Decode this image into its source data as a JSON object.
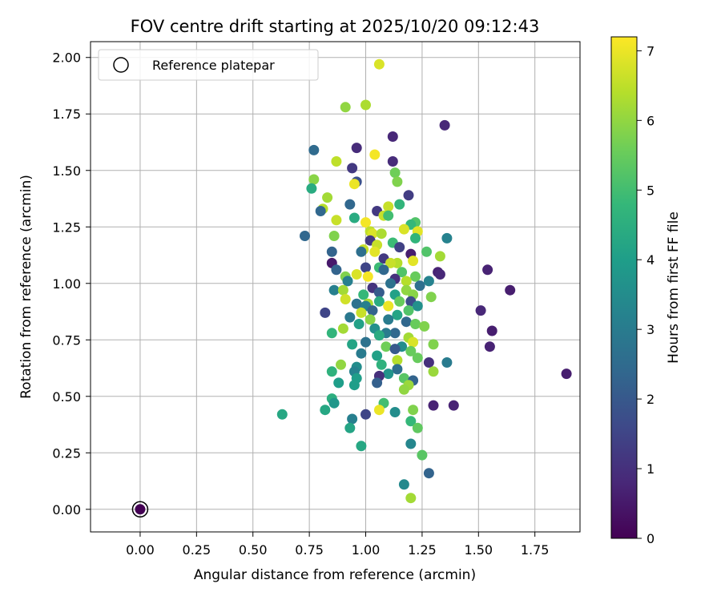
{
  "chart_data": {
    "type": "scatter",
    "title": "FOV centre drift starting at 2025/10/20 09:12:43",
    "xlabel": "Angular distance from reference (arcmin)",
    "ylabel": "Rotation from reference (arcmin)",
    "xlim": [
      -0.22,
      1.95
    ],
    "ylim": [
      -0.1,
      2.07
    ],
    "xticks": [
      "0.00",
      "0.25",
      "0.50",
      "0.75",
      "1.00",
      "1.25",
      "1.50",
      "1.75"
    ],
    "xtick_values": [
      0,
      0.25,
      0.5,
      0.75,
      1.0,
      1.25,
      1.5,
      1.75
    ],
    "yticks": [
      "0.00",
      "0.25",
      "0.50",
      "0.75",
      "1.00",
      "1.25",
      "1.50",
      "1.75",
      "2.00"
    ],
    "ytick_values": [
      0,
      0.25,
      0.5,
      0.75,
      1.0,
      1.25,
      1.5,
      1.75,
      2.0
    ],
    "grid": true,
    "legend": {
      "placement": "top-left",
      "entries": [
        "Reference platepar"
      ]
    },
    "reference_point": {
      "x": 0.0,
      "y": 0.0
    },
    "colorbar": {
      "label": "Hours from first FF file",
      "range": [
        0,
        7.2
      ],
      "ticks": [
        "0",
        "1",
        "2",
        "3",
        "4",
        "5",
        "6",
        "7"
      ],
      "tick_values": [
        0,
        1,
        2,
        3,
        4,
        5,
        6,
        7
      ],
      "colormap": [
        "#440154",
        "#482878",
        "#3e4989",
        "#31688e",
        "#26828e",
        "#1f9e89",
        "#35b779",
        "#6ece58",
        "#b5de2b",
        "#fde725"
      ]
    },
    "points": [
      [
        1.06,
        1.97,
        6.8
      ],
      [
        1.0,
        1.79,
        6.3
      ],
      [
        0.91,
        1.78,
        6.0
      ],
      [
        1.12,
        1.65,
        0.8
      ],
      [
        1.35,
        1.7,
        0.8
      ],
      [
        0.77,
        1.59,
        2.5
      ],
      [
        0.96,
        1.6,
        0.9
      ],
      [
        1.04,
        1.57,
        7.1
      ],
      [
        0.87,
        1.54,
        6.5
      ],
      [
        1.12,
        1.54,
        0.9
      ],
      [
        0.94,
        1.51,
        1.2
      ],
      [
        1.13,
        1.49,
        5.6
      ],
      [
        0.77,
        1.46,
        5.9
      ],
      [
        1.14,
        1.45,
        5.8
      ],
      [
        0.96,
        1.45,
        1.8
      ],
      [
        0.95,
        1.44,
        7.0
      ],
      [
        0.76,
        1.42,
        4.4
      ],
      [
        1.19,
        1.39,
        1.3
      ],
      [
        0.83,
        1.38,
        6.2
      ],
      [
        1.15,
        1.35,
        4.7
      ],
      [
        0.93,
        1.35,
        2.4
      ],
      [
        0.81,
        1.33,
        6.4
      ],
      [
        1.1,
        1.34,
        6.6
      ],
      [
        1.05,
        1.32,
        1.2
      ],
      [
        0.8,
        1.32,
        2.4
      ],
      [
        1.08,
        1.3,
        6.6
      ],
      [
        1.1,
        1.3,
        5.0
      ],
      [
        0.95,
        1.29,
        4.4
      ],
      [
        0.87,
        1.28,
        6.6
      ],
      [
        1.22,
        1.27,
        5.2
      ],
      [
        1.0,
        1.27,
        7.1
      ],
      [
        1.2,
        1.26,
        4.8
      ],
      [
        1.02,
        1.23,
        6.5
      ],
      [
        1.03,
        1.22,
        6.8
      ],
      [
        1.17,
        1.24,
        6.8
      ],
      [
        1.23,
        1.23,
        6.9
      ],
      [
        0.73,
        1.21,
        2.4
      ],
      [
        0.86,
        1.21,
        5.8
      ],
      [
        1.07,
        1.22,
        6.3
      ],
      [
        1.22,
        1.2,
        4.7
      ],
      [
        1.36,
        1.2,
        3.2
      ],
      [
        1.02,
        1.19,
        1.2
      ],
      [
        1.12,
        1.18,
        4.9
      ],
      [
        1.05,
        1.17,
        6.6
      ],
      [
        1.15,
        1.16,
        1.4
      ],
      [
        0.99,
        1.15,
        6.6
      ],
      [
        0.98,
        1.14,
        2.6
      ],
      [
        1.04,
        1.14,
        6.9
      ],
      [
        0.85,
        1.14,
        2.3
      ],
      [
        1.27,
        1.14,
        5.2
      ],
      [
        1.2,
        1.13,
        0.6
      ],
      [
        1.33,
        1.12,
        6.2
      ],
      [
        1.08,
        1.11,
        1.2
      ],
      [
        1.21,
        1.1,
        6.9
      ],
      [
        1.14,
        1.09,
        6.4
      ],
      [
        0.85,
        1.09,
        0.5
      ],
      [
        1.11,
        1.09,
        6.6
      ],
      [
        1.0,
        1.07,
        1.5
      ],
      [
        1.06,
        1.07,
        4.9
      ],
      [
        1.08,
        1.06,
        2.4
      ],
      [
        0.87,
        1.06,
        2.3
      ],
      [
        1.32,
        1.05,
        0.7
      ],
      [
        1.16,
        1.05,
        5.2
      ],
      [
        0.96,
        1.04,
        6.8
      ],
      [
        1.01,
        1.03,
        7.1
      ],
      [
        0.91,
        1.03,
        5.8
      ],
      [
        1.22,
        1.03,
        5.5
      ],
      [
        1.33,
        1.04,
        0.8
      ],
      [
        1.54,
        1.06,
        0.7
      ],
      [
        1.13,
        1.02,
        1.0
      ],
      [
        0.92,
        1.01,
        3.1
      ],
      [
        1.18,
        1.01,
        6.4
      ],
      [
        1.11,
        1.0,
        2.7
      ],
      [
        1.24,
        0.99,
        2.6
      ],
      [
        1.28,
        1.01,
        3.2
      ],
      [
        1.03,
        0.98,
        1.1
      ],
      [
        0.86,
        0.97,
        3.1
      ],
      [
        0.9,
        0.97,
        6.2
      ],
      [
        1.18,
        0.97,
        6.0
      ],
      [
        1.64,
        0.97,
        0.6
      ],
      [
        1.06,
        0.96,
        2.1
      ],
      [
        1.13,
        0.95,
        4.1
      ],
      [
        1.21,
        0.95,
        5.9
      ],
      [
        0.99,
        0.95,
        4.8
      ],
      [
        1.29,
        0.94,
        5.8
      ],
      [
        0.91,
        0.93,
        6.7
      ],
      [
        1.2,
        0.92,
        1.7
      ],
      [
        1.06,
        0.92,
        4.4
      ],
      [
        0.96,
        0.91,
        2.7
      ],
      [
        1.01,
        0.91,
        6.3
      ],
      [
        1.15,
        0.92,
        5.5
      ],
      [
        1.23,
        0.9,
        3.6
      ],
      [
        1.0,
        0.9,
        3.1
      ],
      [
        1.03,
        0.88,
        2.3
      ],
      [
        1.1,
        0.9,
        7.0
      ],
      [
        1.19,
        0.88,
        5.2
      ],
      [
        0.98,
        0.87,
        6.6
      ],
      [
        1.51,
        0.88,
        0.8
      ],
      [
        0.82,
        0.87,
        1.5
      ],
      [
        1.14,
        0.86,
        4.2
      ],
      [
        0.93,
        0.85,
        2.9
      ],
      [
        1.1,
        0.84,
        3.0
      ],
      [
        1.02,
        0.84,
        5.9
      ],
      [
        1.18,
        0.83,
        2.4
      ],
      [
        0.97,
        0.82,
        4.1
      ],
      [
        1.22,
        0.82,
        5.5
      ],
      [
        1.26,
        0.81,
        5.8
      ],
      [
        0.9,
        0.8,
        6.2
      ],
      [
        1.04,
        0.8,
        3.6
      ],
      [
        1.56,
        0.79,
        0.6
      ],
      [
        1.13,
        0.78,
        2.4
      ],
      [
        1.09,
        0.78,
        3.0
      ],
      [
        0.85,
        0.78,
        4.7
      ],
      [
        1.06,
        0.77,
        4.4
      ],
      [
        1.19,
        0.76,
        6.2
      ],
      [
        1.21,
        0.74,
        6.8
      ],
      [
        1.0,
        0.74,
        2.7
      ],
      [
        0.94,
        0.73,
        4.2
      ],
      [
        1.09,
        0.72,
        5.6
      ],
      [
        1.16,
        0.72,
        3.5
      ],
      [
        1.3,
        0.73,
        5.8
      ],
      [
        1.55,
        0.72,
        0.7
      ],
      [
        1.13,
        0.71,
        2.0
      ],
      [
        1.2,
        0.7,
        5.5
      ],
      [
        0.98,
        0.69,
        3.0
      ],
      [
        1.05,
        0.68,
        4.1
      ],
      [
        1.23,
        0.67,
        5.5
      ],
      [
        1.14,
        0.66,
        6.4
      ],
      [
        0.89,
        0.64,
        6.0
      ],
      [
        0.96,
        0.63,
        3.5
      ],
      [
        1.07,
        0.64,
        4.6
      ],
      [
        1.28,
        0.65,
        1.0
      ],
      [
        1.36,
        0.65,
        3.0
      ],
      [
        1.14,
        0.62,
        2.6
      ],
      [
        0.85,
        0.61,
        4.6
      ],
      [
        0.95,
        0.61,
        3.2
      ],
      [
        1.3,
        0.61,
        6.1
      ],
      [
        1.1,
        0.6,
        3.7
      ],
      [
        1.06,
        0.59,
        1.0
      ],
      [
        0.96,
        0.58,
        4.0
      ],
      [
        1.17,
        0.58,
        5.3
      ],
      [
        1.21,
        0.57,
        2.3
      ],
      [
        0.88,
        0.56,
        4.0
      ],
      [
        1.05,
        0.56,
        2.2
      ],
      [
        1.19,
        0.55,
        6.1
      ],
      [
        1.17,
        0.53,
        6.0
      ],
      [
        1.89,
        0.6,
        0.6
      ],
      [
        0.95,
        0.55,
        4.0
      ],
      [
        0.85,
        0.49,
        4.5
      ],
      [
        1.08,
        0.47,
        5.0
      ],
      [
        0.86,
        0.47,
        3.8
      ],
      [
        1.3,
        0.46,
        0.7
      ],
      [
        1.39,
        0.46,
        0.7
      ],
      [
        0.82,
        0.44,
        4.3
      ],
      [
        1.06,
        0.44,
        7.0
      ],
      [
        1.21,
        0.44,
        5.8
      ],
      [
        1.13,
        0.43,
        3.5
      ],
      [
        0.63,
        0.42,
        4.3
      ],
      [
        1.0,
        0.42,
        1.5
      ],
      [
        0.94,
        0.4,
        3.1
      ],
      [
        1.2,
        0.39,
        4.8
      ],
      [
        0.93,
        0.36,
        4.2
      ],
      [
        1.23,
        0.36,
        5.4
      ],
      [
        0.98,
        0.28,
        4.3
      ],
      [
        1.2,
        0.29,
        3.3
      ],
      [
        1.25,
        0.24,
        5.3
      ],
      [
        1.28,
        0.16,
        2.3
      ],
      [
        1.17,
        0.11,
        3.4
      ],
      [
        1.2,
        0.05,
        6.2
      ]
    ]
  }
}
